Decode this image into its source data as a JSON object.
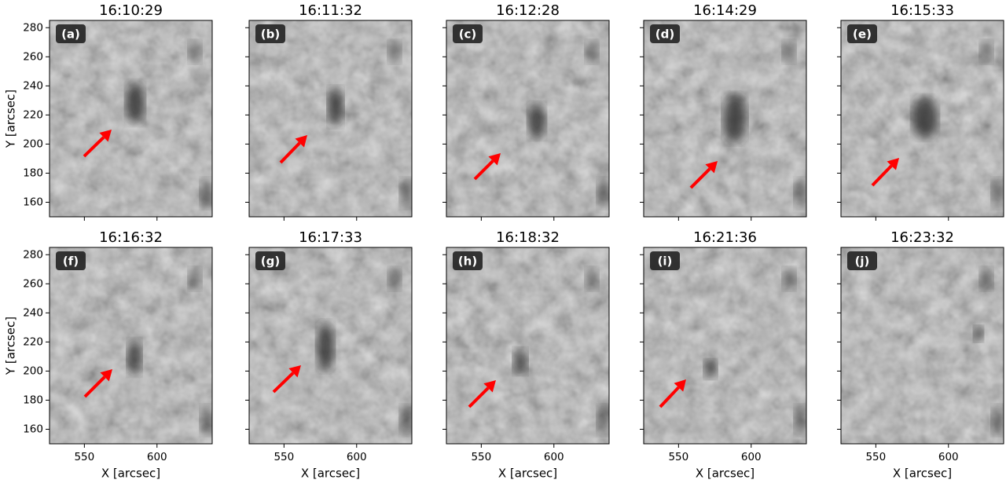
{
  "chart_data": [
    {
      "type": "image",
      "title": "16:10:29",
      "label": "(a)",
      "ylabel": "Y [arcsec]",
      "xlim": [
        526,
        638
      ],
      "ylim": [
        150,
        285
      ],
      "xticks": [
        550,
        600
      ],
      "yticks": [
        160,
        180,
        200,
        220,
        240,
        260,
        280
      ]
    },
    {
      "type": "image",
      "title": "16:11:32",
      "label": "(b)",
      "xlim": [
        526,
        638
      ],
      "ylim": [
        150,
        285
      ],
      "xticks": [
        550,
        600
      ],
      "yticks": [
        160,
        180,
        200,
        220,
        240,
        260,
        280
      ]
    },
    {
      "type": "image",
      "title": "16:12:28",
      "label": "(c)",
      "xlim": [
        526,
        638
      ],
      "ylim": [
        150,
        285
      ],
      "xticks": [
        550,
        600
      ],
      "yticks": [
        160,
        180,
        200,
        220,
        240,
        260,
        280
      ]
    },
    {
      "type": "image",
      "title": "16:14:29",
      "label": "(d)",
      "xlim": [
        526,
        638
      ],
      "ylim": [
        150,
        285
      ],
      "xticks": [
        550,
        600
      ],
      "yticks": [
        160,
        180,
        200,
        220,
        240,
        260,
        280
      ]
    },
    {
      "type": "image",
      "title": "16:15:33",
      "label": "(e)",
      "xlim": [
        526,
        638
      ],
      "ylim": [
        150,
        285
      ],
      "xticks": [
        550,
        600
      ],
      "yticks": [
        160,
        180,
        200,
        220,
        240,
        260,
        280
      ]
    },
    {
      "type": "image",
      "title": "16:16:32",
      "label": "(f)",
      "xlabel": "X [arcsec]",
      "ylabel": "Y [arcsec]",
      "xlim": [
        526,
        638
      ],
      "ylim": [
        150,
        285
      ],
      "xticks": [
        550,
        600
      ],
      "yticks": [
        160,
        180,
        200,
        220,
        240,
        260,
        280
      ]
    },
    {
      "type": "image",
      "title": "16:17:33",
      "label": "(g)",
      "xlabel": "X [arcsec]",
      "xlim": [
        526,
        638
      ],
      "ylim": [
        150,
        285
      ],
      "xticks": [
        550,
        600
      ],
      "yticks": [
        160,
        180,
        200,
        220,
        240,
        260,
        280
      ]
    },
    {
      "type": "image",
      "title": "16:18:32",
      "label": "(h)",
      "xlabel": "X [arcsec]",
      "xlim": [
        526,
        638
      ],
      "ylim": [
        150,
        285
      ],
      "xticks": [
        550,
        600
      ],
      "yticks": [
        160,
        180,
        200,
        220,
        240,
        260,
        280
      ]
    },
    {
      "type": "image",
      "title": "16:21:36",
      "label": "(i)",
      "xlabel": "X [arcsec]",
      "xlim": [
        526,
        638
      ],
      "ylim": [
        150,
        285
      ],
      "xticks": [
        550,
        600
      ],
      "yticks": [
        160,
        180,
        200,
        220,
        240,
        260,
        280
      ]
    },
    {
      "type": "image",
      "title": "16:23:32",
      "label": "(j)",
      "xlabel": "X [arcsec]",
      "xlim": [
        526,
        638
      ],
      "ylim": [
        150,
        285
      ],
      "xticks": [
        550,
        600
      ],
      "yticks": [
        160,
        180,
        200,
        220,
        240,
        260,
        280
      ]
    }
  ]
}
